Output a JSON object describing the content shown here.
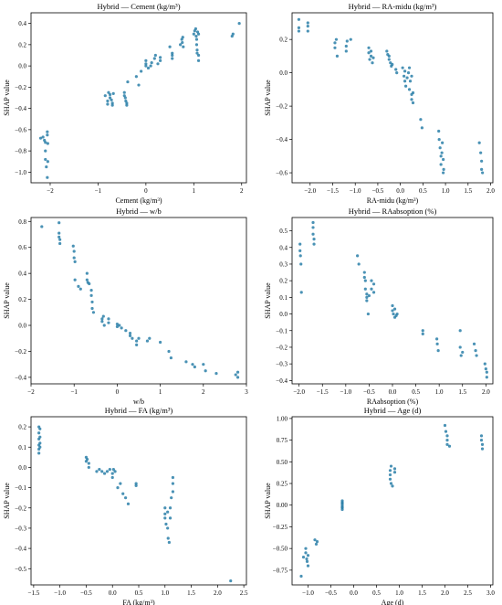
{
  "chart_data": [
    {
      "type": "scatter",
      "title": "Hybrid — Cement (kg/m³)",
      "xlabel": "Cement (kg/m³)",
      "ylabel": "SHAP value",
      "xlim": [
        -2.4,
        2.1
      ],
      "ylim": [
        -1.1,
        0.5
      ],
      "xticks": [
        -2,
        -1,
        0,
        1,
        2
      ],
      "yticks": [
        -1.0,
        -0.8,
        -0.6,
        -0.4,
        -0.2,
        0.0,
        0.2,
        0.4
      ],
      "x": [
        -2.2,
        -2.15,
        -2.12,
        -2.1,
        -2.1,
        -2.1,
        -2.08,
        -2.06,
        -2.06,
        -2.06,
        -2.05,
        -2.05,
        -0.85,
        -0.8,
        -0.8,
        -0.78,
        -0.75,
        -0.75,
        -0.72,
        -0.7,
        -0.7,
        -0.68,
        -0.45,
        -0.45,
        -0.43,
        -0.42,
        -0.4,
        -0.4,
        -0.38,
        -0.2,
        -0.15,
        -0.1,
        0.0,
        0.0,
        0.0,
        0.05,
        0.1,
        0.12,
        0.18,
        0.2,
        0.25,
        0.3,
        0.3,
        0.5,
        0.55,
        0.55,
        0.55,
        0.72,
        0.75,
        0.76,
        0.77,
        0.78,
        1.0,
        1.02,
        1.04,
        1.05,
        1.06,
        1.06,
        1.07,
        1.07,
        1.08,
        1.1,
        1.1,
        1.1,
        1.8,
        1.82,
        1.95
      ],
      "y": [
        -0.68,
        -0.67,
        -0.7,
        -0.72,
        -0.8,
        -0.88,
        -0.95,
        -1.05,
        -0.62,
        -0.65,
        -0.73,
        -0.9,
        -0.28,
        -0.33,
        -0.36,
        -0.25,
        -0.27,
        -0.3,
        -0.32,
        -0.35,
        -0.37,
        -0.26,
        -0.25,
        -0.28,
        -0.3,
        -0.33,
        -0.35,
        -0.37,
        -0.15,
        -0.1,
        -0.18,
        -0.05,
        0.0,
        0.02,
        0.05,
        -0.02,
        0.0,
        0.03,
        0.07,
        0.1,
        0.02,
        0.05,
        0.08,
        0.18,
        0.1,
        0.12,
        0.07,
        0.2,
        0.25,
        0.22,
        0.27,
        0.18,
        0.3,
        0.33,
        0.35,
        0.28,
        0.25,
        0.2,
        0.15,
        0.12,
        0.32,
        0.3,
        0.1,
        0.05,
        0.28,
        0.3,
        0.4
      ]
    },
    {
      "type": "scatter",
      "title": "Hybrid — RA-midu (kg/m³)",
      "xlabel": "RA-midu (kg/m³)",
      "ylabel": "SHAP value",
      "xlim": [
        -2.4,
        2.05
      ],
      "ylim": [
        -0.66,
        0.36
      ],
      "xticks": [
        -2.0,
        -1.5,
        -1.0,
        -0.5,
        0.0,
        0.5,
        1.0,
        1.5,
        2.0
      ],
      "yticks": [
        -0.6,
        -0.4,
        -0.2,
        0.0,
        0.2
      ],
      "x": [
        -2.25,
        -2.25,
        -2.25,
        -2.05,
        -2.05,
        -2.05,
        -1.45,
        -1.45,
        -1.42,
        -1.4,
        -1.2,
        -1.2,
        -1.18,
        -1.1,
        -0.7,
        -0.7,
        -0.68,
        -0.65,
        -0.65,
        -0.62,
        -0.6,
        -0.3,
        -0.28,
        -0.25,
        -0.25,
        -0.22,
        -0.2,
        -0.18,
        -0.1,
        -0.08,
        0.05,
        0.08,
        0.1,
        0.1,
        0.12,
        0.15,
        0.18,
        0.2,
        0.2,
        0.22,
        0.25,
        0.25,
        0.25,
        0.28,
        0.28,
        0.45,
        0.48,
        0.85,
        0.86,
        0.88,
        0.9,
        0.9,
        0.92,
        0.93,
        0.95,
        0.95,
        0.96,
        1.75,
        1.78,
        1.8,
        1.8,
        1.82
      ],
      "y": [
        0.32,
        0.27,
        0.25,
        0.3,
        0.28,
        0.25,
        0.18,
        0.15,
        0.2,
        0.1,
        0.16,
        0.13,
        0.19,
        0.2,
        0.15,
        0.12,
        0.08,
        0.1,
        0.13,
        0.06,
        0.09,
        0.13,
        0.11,
        0.1,
        0.08,
        0.06,
        0.04,
        0.05,
        0.02,
        0.0,
        0.03,
        -0.02,
        0.01,
        -0.05,
        -0.08,
        -0.03,
        0.0,
        0.03,
        -0.1,
        -0.05,
        -0.02,
        -0.13,
        -0.16,
        -0.18,
        -0.12,
        -0.28,
        -0.33,
        -0.35,
        -0.4,
        -0.45,
        -0.5,
        -0.55,
        -0.48,
        -0.42,
        -0.52,
        -0.6,
        -0.58,
        -0.42,
        -0.48,
        -0.53,
        -0.58,
        -0.6
      ]
    },
    {
      "type": "scatter",
      "title": "Hybrid — w/b",
      "xlabel": "w/b",
      "ylabel": "SHAP value",
      "xlim": [
        -2.0,
        3.0
      ],
      "ylim": [
        -0.45,
        0.83
      ],
      "xticks": [
        -2,
        -1,
        0,
        1,
        2,
        3
      ],
      "yticks": [
        -0.4,
        -0.2,
        0.0,
        0.2,
        0.4,
        0.6,
        0.8
      ],
      "x": [
        -1.75,
        -1.35,
        -1.35,
        -1.35,
        -1.33,
        -1.33,
        -1.02,
        -1.0,
        -1.0,
        -0.98,
        -0.98,
        -0.9,
        -0.85,
        -0.7,
        -0.7,
        -0.68,
        -0.65,
        -0.6,
        -0.6,
        -0.58,
        -0.58,
        -0.55,
        -0.35,
        -0.35,
        -0.32,
        -0.3,
        -0.2,
        -0.2,
        0.0,
        0.0,
        0.05,
        0.1,
        0.2,
        0.3,
        0.3,
        0.35,
        0.45,
        0.45,
        0.5,
        0.7,
        0.75,
        1.0,
        1.2,
        1.25,
        1.6,
        1.75,
        1.8,
        2.0,
        2.05,
        2.3,
        2.75,
        2.8,
        2.8
      ],
      "y": [
        0.76,
        0.79,
        0.71,
        0.68,
        0.66,
        0.63,
        0.61,
        0.57,
        0.52,
        0.49,
        0.35,
        0.3,
        0.28,
        0.4,
        0.35,
        0.33,
        0.32,
        0.27,
        0.23,
        0.18,
        0.13,
        0.1,
        0.05,
        0.03,
        0.07,
        0.0,
        0.05,
        0.02,
        0.01,
        -0.01,
        0.0,
        -0.02,
        -0.04,
        -0.06,
        -0.08,
        -0.1,
        -0.12,
        -0.15,
        -0.1,
        -0.12,
        -0.1,
        -0.13,
        -0.2,
        -0.25,
        -0.28,
        -0.3,
        -0.32,
        -0.3,
        -0.35,
        -0.37,
        -0.38,
        -0.36,
        -0.4
      ]
    },
    {
      "type": "scatter",
      "title": "Hybrid — RAabsoption (%)",
      "xlabel": "RAabsoption (%)",
      "ylabel": "SHAP value",
      "xlim": [
        -2.15,
        2.15
      ],
      "ylim": [
        -0.42,
        0.58
      ],
      "xticks": [
        -2.0,
        -1.5,
        -1.0,
        -0.5,
        0.0,
        0.5,
        1.0,
        1.5,
        2.0
      ],
      "yticks": [
        -0.4,
        -0.3,
        -0.2,
        -0.1,
        0.0,
        0.1,
        0.2,
        0.3,
        0.4,
        0.5
      ],
      "x": [
        -1.98,
        -1.98,
        -1.97,
        -1.96,
        -1.95,
        -1.7,
        -1.7,
        -1.7,
        -1.68,
        -1.68,
        -0.75,
        -0.72,
        -0.6,
        -0.6,
        -0.58,
        -0.58,
        -0.55,
        -0.55,
        -0.55,
        -0.52,
        -0.5,
        -0.45,
        -0.45,
        -0.4,
        -0.4,
        0.0,
        0.0,
        0.02,
        0.05,
        0.05,
        0.08,
        0.1,
        0.65,
        0.65,
        0.95,
        0.96,
        0.98,
        1.45,
        1.45,
        1.47,
        1.5,
        1.75,
        1.78,
        1.8,
        1.98,
        2.0,
        2.02,
        2.02
      ],
      "y": [
        0.42,
        0.38,
        0.35,
        0.3,
        0.13,
        0.55,
        0.52,
        0.48,
        0.45,
        0.42,
        0.35,
        0.3,
        0.25,
        0.22,
        0.2,
        0.15,
        0.12,
        0.1,
        0.08,
        0.0,
        0.11,
        0.2,
        0.15,
        0.18,
        0.13,
        0.05,
        0.02,
        0.0,
        -0.02,
        0.03,
        -0.01,
        0.0,
        -0.1,
        -0.12,
        -0.15,
        -0.18,
        -0.22,
        -0.1,
        -0.2,
        -0.25,
        -0.23,
        -0.18,
        -0.22,
        -0.25,
        -0.3,
        -0.33,
        -0.35,
        -0.38
      ]
    },
    {
      "type": "scatter",
      "title": "Hybrid — FA (kg/m³)",
      "xlabel": "FA (kg/m³)",
      "ylabel": "SHAP value",
      "xlim": [
        -1.55,
        2.55
      ],
      "ylim": [
        -0.58,
        0.25
      ],
      "xticks": [
        -1.5,
        -1.0,
        -0.5,
        0.0,
        0.5,
        1.0,
        1.5,
        2.0,
        2.5
      ],
      "yticks": [
        -0.5,
        -0.4,
        -0.3,
        -0.2,
        -0.1,
        0.0,
        0.1,
        0.2
      ],
      "x": [
        -1.4,
        -1.4,
        -1.4,
        -1.4,
        -1.4,
        -1.4,
        -1.38,
        -1.38,
        -1.38,
        -1.38,
        -0.5,
        -0.5,
        -0.48,
        -0.45,
        -0.45,
        -0.3,
        -0.25,
        -0.2,
        -0.15,
        -0.1,
        -0.05,
        0.0,
        0.0,
        0.02,
        0.05,
        0.1,
        0.15,
        0.2,
        0.25,
        0.3,
        0.45,
        0.45,
        1.0,
        1.0,
        1.0,
        1.02,
        1.05,
        1.05,
        1.06,
        1.08,
        1.1,
        1.1,
        1.12,
        1.15,
        1.15,
        1.15,
        2.25
      ],
      "y": [
        0.2,
        0.17,
        0.14,
        0.11,
        0.09,
        0.07,
        0.19,
        0.15,
        0.12,
        0.1,
        0.05,
        0.03,
        0.04,
        0.02,
        0.0,
        -0.02,
        -0.01,
        -0.02,
        -0.03,
        -0.02,
        -0.01,
        -0.03,
        -0.05,
        -0.01,
        -0.02,
        -0.1,
        -0.08,
        -0.13,
        -0.15,
        -0.18,
        -0.08,
        -0.09,
        -0.25,
        -0.2,
        -0.23,
        -0.28,
        -0.3,
        -0.22,
        -0.35,
        -0.37,
        -0.25,
        -0.2,
        -0.15,
        -0.08,
        -0.05,
        -0.12,
        -0.56
      ]
    },
    {
      "type": "scatter",
      "title": "Hybrid — Age (d)",
      "xlabel": "Age (d)",
      "ylabel": "SHAP value",
      "xlim": [
        -1.35,
        3.05
      ],
      "ylim": [
        -0.92,
        1.02
      ],
      "xticks": [
        -1.0,
        -0.5,
        0.0,
        0.5,
        1.0,
        1.5,
        2.0,
        2.5,
        3.0
      ],
      "yticks": [
        -0.75,
        -0.5,
        -0.25,
        0.0,
        0.25,
        0.5,
        0.75,
        1.0
      ],
      "x": [
        -1.15,
        -1.1,
        -1.05,
        -1.05,
        -1.03,
        -1.02,
        -1.0,
        -1.0,
        -0.85,
        -0.82,
        -0.8,
        -0.25,
        -0.25,
        -0.25,
        -0.25,
        -0.25,
        -0.25,
        -0.25,
        0.8,
        0.8,
        0.8,
        0.82,
        0.82,
        0.85,
        0.9,
        0.9,
        2.0,
        2.02,
        2.05,
        2.05,
        2.05,
        2.1,
        2.8,
        2.8,
        2.82,
        2.82
      ],
      "y": [
        -0.82,
        -0.6,
        -0.5,
        -0.55,
        -0.62,
        -0.65,
        -0.58,
        -0.7,
        -0.4,
        -0.45,
        -0.42,
        0.05,
        0.02,
        0.0,
        -0.02,
        -0.05,
        0.03,
        -0.03,
        0.3,
        0.35,
        0.4,
        0.25,
        0.45,
        0.22,
        0.38,
        0.42,
        0.92,
        0.85,
        0.8,
        0.75,
        0.7,
        0.68,
        0.8,
        0.75,
        0.7,
        0.65
      ]
    }
  ]
}
